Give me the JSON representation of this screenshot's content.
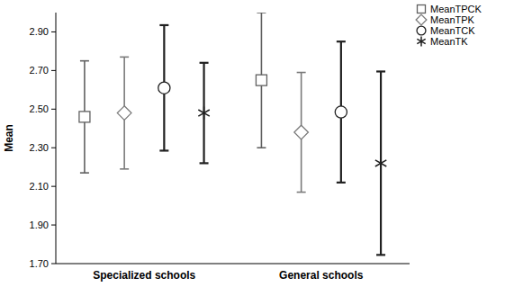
{
  "chart_data": {
    "type": "errorbar",
    "y_label": "Mean",
    "categories": [
      "Specialized schools",
      "General schools"
    ],
    "series": [
      {
        "name": "MeanTPCK",
        "color": "#606060",
        "marker": "square",
        "values": [
          2.46,
          2.65
        ],
        "errors": [
          0.29,
          0.35
        ]
      },
      {
        "name": "MeanTPK",
        "color": "#7a7a7a",
        "marker": "diamond",
        "values": [
          2.48,
          2.38
        ],
        "errors": [
          0.29,
          0.31
        ]
      },
      {
        "name": "MeanTCK",
        "color": "#202020",
        "marker": "circle",
        "values": [
          2.61,
          2.485
        ],
        "errors": [
          0.325,
          0.365
        ]
      },
      {
        "name": "MeanTK",
        "color": "#202020",
        "marker": "star",
        "values": [
          2.48,
          2.22
        ],
        "errors": [
          0.26,
          0.475
        ]
      }
    ],
    "ylim": [
      1.7,
      3.0
    ],
    "yticks": [
      {
        "value": 1.7,
        "label": "1.70"
      },
      {
        "value": 1.9,
        "label": "1.90"
      },
      {
        "value": 2.1,
        "label": "2.10"
      },
      {
        "value": 2.3,
        "label": "2.30"
      },
      {
        "value": 2.5,
        "label": "2.50"
      },
      {
        "value": 2.7,
        "label": "2.70"
      },
      {
        "value": 2.9,
        "label": "2.90"
      }
    ],
    "grid": false,
    "legend": "top-right"
  }
}
